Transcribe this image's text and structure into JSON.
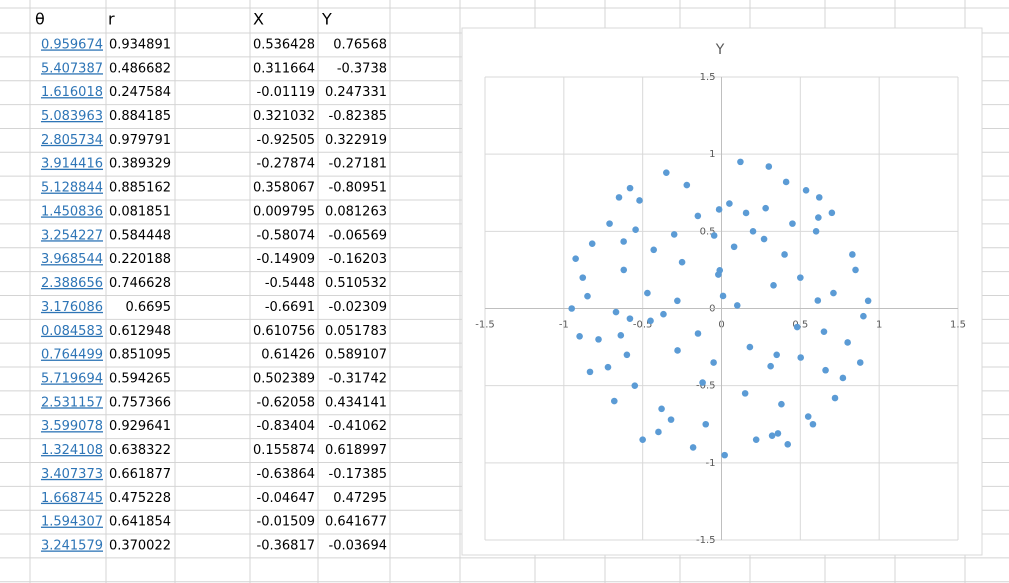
{
  "table": {
    "columns": [
      "θ",
      "r",
      "X",
      "Y"
    ],
    "rows": [
      [
        0.959674,
        0.934891,
        0.536428,
        0.76568
      ],
      [
        5.407387,
        0.486682,
        0.311664,
        -0.3738
      ],
      [
        1.616018,
        0.247584,
        -0.01119,
        0.247331
      ],
      [
        5.083963,
        0.884185,
        0.321032,
        -0.82385
      ],
      [
        2.805734,
        0.979791,
        -0.92505,
        0.322919
      ],
      [
        3.914416,
        0.389329,
        -0.27874,
        -0.27181
      ],
      [
        5.128844,
        0.885162,
        0.358067,
        -0.80951
      ],
      [
        1.450836,
        0.081851,
        0.009795,
        0.081263
      ],
      [
        3.254227,
        0.584448,
        -0.58074,
        -0.06569
      ],
      [
        3.968544,
        0.220188,
        -0.14909,
        -0.16203
      ],
      [
        2.388656,
        0.746628,
        -0.5448,
        0.510532
      ],
      [
        3.176086,
        0.6695,
        -0.6691,
        -0.02309
      ],
      [
        0.084583,
        0.612948,
        0.610756,
        0.051783
      ],
      [
        0.764499,
        0.851095,
        0.61426,
        0.589107
      ],
      [
        5.719694,
        0.594265,
        0.502389,
        -0.31742
      ],
      [
        2.531157,
        0.757366,
        -0.62058,
        0.434141
      ],
      [
        3.599078,
        0.929641,
        -0.83404,
        -0.41062
      ],
      [
        1.324108,
        0.638322,
        0.155874,
        0.618997
      ],
      [
        3.407373,
        0.661877,
        -0.63864,
        -0.17385
      ],
      [
        1.668745,
        0.475228,
        -0.04647,
        0.47295
      ],
      [
        1.594307,
        0.641854,
        -0.01509,
        0.641677
      ],
      [
        3.241579,
        0.370022,
        -0.36817,
        -0.03694
      ]
    ]
  },
  "chart_data": {
    "type": "scatter",
    "title": "Y",
    "color": "#5b9bd5",
    "grid": true,
    "xlim": [
      -1.5,
      1.5
    ],
    "ylim": [
      -1.5,
      1.5
    ],
    "xticks": [
      -1.5,
      -1,
      -0.5,
      0,
      0.5,
      1,
      1.5
    ],
    "yticks": [
      -1.5,
      -1,
      -0.5,
      0,
      0.5,
      1,
      1.5
    ],
    "x": [
      0.536428,
      0.311664,
      -0.01119,
      0.321032,
      -0.92505,
      -0.27874,
      0.358067,
      0.009795,
      -0.58074,
      -0.14909,
      -0.5448,
      -0.6691,
      0.610756,
      0.61426,
      0.502389,
      -0.62058,
      -0.83404,
      0.155874,
      -0.63864,
      -0.04647,
      -0.01509,
      -0.36817,
      0.12,
      -0.35,
      0.62,
      -0.71,
      0.41,
      -0.15,
      0.83,
      -0.52,
      0.27,
      -0.88,
      0.05,
      0.71,
      -0.43,
      0.33,
      -0.62,
      0.9,
      -0.25,
      0.48,
      -0.78,
      0.18,
      0.66,
      -0.05,
      -0.55,
      0.38,
      -0.32,
      0.77,
      -0.68,
      0.22,
      0.55,
      -0.18,
      -0.9,
      0.45,
      0.08,
      -0.47,
      0.85,
      -0.3,
      0.6,
      -0.82,
      0.15,
      -0.6,
      0.35,
      0.72,
      -0.1,
      -0.4,
      0.93,
      -0.72,
      0.28,
      0.02,
      -0.58,
      0.5,
      -0.22,
      0.8,
      -0.45,
      0.1,
      0.65,
      -0.85,
      0.42,
      -0.12,
      0.3,
      -0.65,
      0.58,
      -0.38,
      0.88,
      -0.95,
      0.2,
      -0.28,
      0.7,
      -0.5,
      0.4,
      -0.02
    ],
    "y": [
      0.76568,
      -0.3738,
      0.247331,
      -0.82385,
      0.322919,
      -0.27181,
      -0.80951,
      0.081263,
      -0.06569,
      -0.16203,
      0.510532,
      -0.02309,
      0.051783,
      0.589107,
      -0.31742,
      0.434141,
      -0.41062,
      0.618997,
      -0.17385,
      0.47295,
      0.641677,
      -0.03694,
      0.95,
      0.88,
      0.72,
      0.55,
      0.82,
      0.6,
      0.35,
      0.7,
      0.45,
      0.2,
      0.68,
      0.1,
      0.38,
      0.15,
      0.25,
      -0.05,
      0.3,
      -0.12,
      -0.2,
      -0.25,
      -0.4,
      -0.35,
      -0.5,
      -0.62,
      -0.72,
      -0.45,
      -0.6,
      -0.85,
      -0.7,
      -0.9,
      -0.18,
      0.55,
      0.4,
      0.1,
      0.25,
      0.48,
      0.5,
      0.42,
      -0.55,
      -0.3,
      -0.3,
      -0.58,
      -0.75,
      -0.8,
      0.05,
      -0.38,
      0.65,
      -0.95,
      0.78,
      0.2,
      0.8,
      -0.22,
      -0.08,
      0.02,
      -0.15,
      0.08,
      -0.88,
      -0.48,
      0.92,
      0.72,
      -0.75,
      -0.65,
      -0.35,
      0,
      0.5,
      0.05,
      0.62,
      -0.85,
      0.35,
      0.22
    ]
  }
}
